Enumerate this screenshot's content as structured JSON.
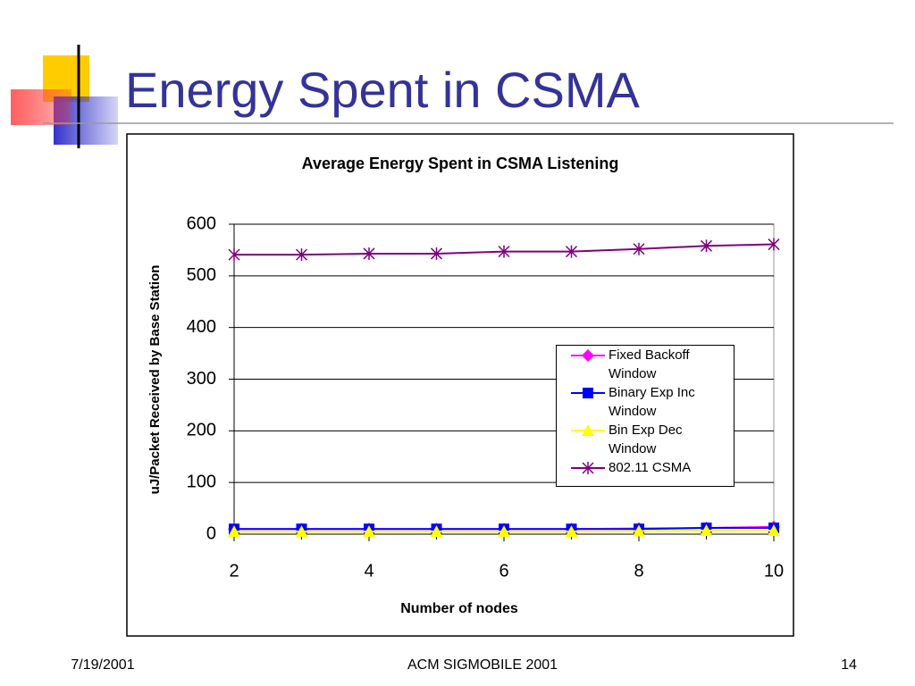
{
  "slide": {
    "title": "Energy Spent in CSMA",
    "date": "7/19/2001",
    "venue": "ACM SIGMOBILE 2001",
    "page": "14"
  },
  "chart_data": {
    "type": "line",
    "title": "Average Energy Spent in CSMA Listening",
    "x_label": "Number of nodes",
    "y_label": "uJ/Packet Received by Base Station",
    "x": [
      2,
      3,
      4,
      5,
      6,
      7,
      8,
      9,
      10
    ],
    "xlim": [
      2,
      10
    ],
    "xticks": [
      2,
      4,
      6,
      8,
      10
    ],
    "ylim": [
      0,
      600
    ],
    "yticks": [
      0,
      100,
      200,
      300,
      400,
      500,
      600
    ],
    "grid": true,
    "series": [
      {
        "name": "Fixed Backoff Window",
        "color": "#ff00ff",
        "marker": "diamond",
        "values": [
          10,
          10,
          10,
          10,
          10,
          10,
          11,
          12,
          14
        ]
      },
      {
        "name": "Binary Exp Inc Window",
        "color": "#0000ff",
        "marker": "square",
        "values": [
          10,
          10,
          10,
          10,
          10,
          10,
          10,
          12,
          12
        ]
      },
      {
        "name": "Bin Exp Dec Window",
        "color": "#ffff00",
        "marker": "triangle",
        "values": [
          5,
          5,
          5,
          5,
          5,
          5,
          6,
          7,
          7
        ]
      },
      {
        "name": "802.11 CSMA",
        "color": "#800080",
        "marker": "asterisk",
        "values": [
          541,
          541,
          543,
          543,
          547,
          547,
          552,
          558,
          561
        ]
      }
    ]
  }
}
